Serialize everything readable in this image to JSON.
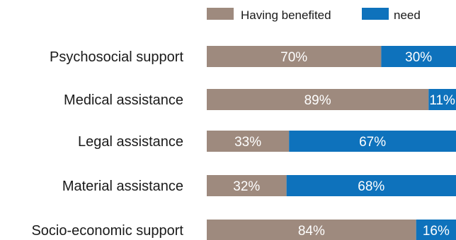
{
  "chart_data": {
    "type": "bar",
    "orientation": "horizontal",
    "stacked": true,
    "categories": [
      "Psychosocial support",
      "Medical assistance",
      "Legal assistance",
      "Material assistance",
      "Socio-economic support"
    ],
    "series": [
      {
        "name": "Having benefited",
        "values": [
          70,
          89,
          33,
          32,
          84
        ],
        "labels": [
          "70%",
          "89%",
          "33%",
          "32%",
          "84%"
        ],
        "color": "#9e8a7e"
      },
      {
        "name": "need",
        "values": [
          30,
          11,
          67,
          68,
          16
        ],
        "labels": [
          "30%",
          "11%",
          "67%",
          "68%",
          "16%"
        ],
        "color": "#0e72bc"
      }
    ],
    "xlim": [
      0,
      100
    ],
    "unit": "%",
    "legend_position": "top",
    "grid": false,
    "title": "",
    "xlabel": "",
    "ylabel": ""
  }
}
